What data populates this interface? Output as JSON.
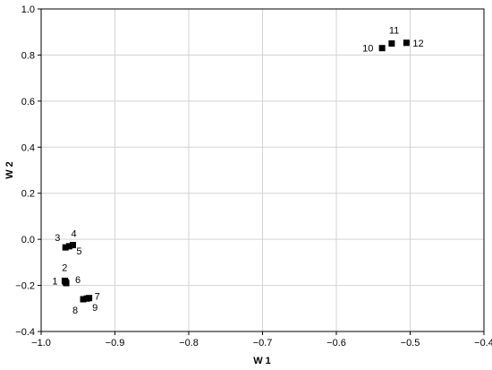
{
  "chart_data": {
    "type": "scatter",
    "title": "",
    "xlabel": "W 1",
    "ylabel": "W 2",
    "xlim": [
      -1.0,
      -0.4
    ],
    "ylim": [
      -0.4,
      1.0
    ],
    "x_ticks": [
      "−1.0",
      "−0.9",
      "−0.8",
      "−0.7",
      "−0.6",
      "−0.5",
      "−0.4"
    ],
    "y_ticks": [
      "−0.4",
      "−0.2",
      "0.0",
      "0.2",
      "0.4",
      "0.6",
      "0.8",
      "1.0"
    ],
    "grid": true,
    "points": [
      {
        "label": "1",
        "x": -0.968,
        "y": -0.18
      },
      {
        "label": "2",
        "x": -0.967,
        "y": -0.185
      },
      {
        "label": "3",
        "x": -0.967,
        "y": -0.035
      },
      {
        "label": "4",
        "x": -0.957,
        "y": -0.025
      },
      {
        "label": "5",
        "x": -0.962,
        "y": -0.03
      },
      {
        "label": "6",
        "x": -0.966,
        "y": -0.19
      },
      {
        "label": "7",
        "x": -0.935,
        "y": -0.255
      },
      {
        "label": "8",
        "x": -0.943,
        "y": -0.26
      },
      {
        "label": "9",
        "x": -0.938,
        "y": -0.257
      },
      {
        "label": "10",
        "x": -0.538,
        "y": 0.83
      },
      {
        "label": "11",
        "x": -0.525,
        "y": 0.85
      },
      {
        "label": "12",
        "x": -0.505,
        "y": 0.853
      }
    ]
  }
}
